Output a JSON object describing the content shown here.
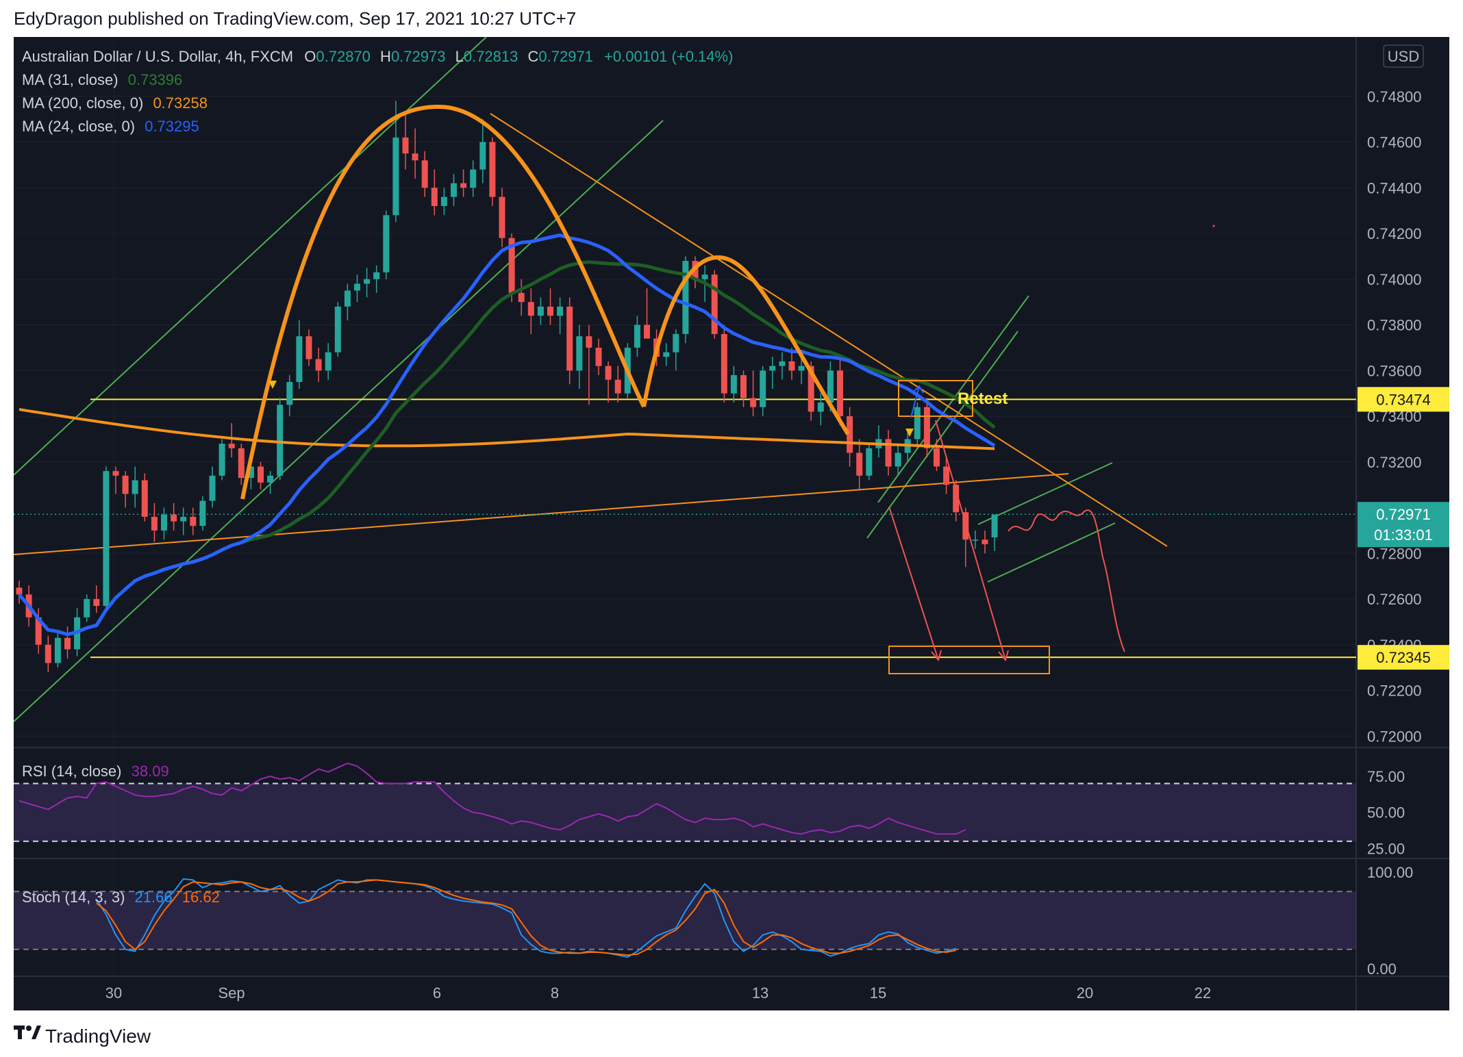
{
  "header": {
    "publisher_line": "EdyDragon published on TradingView.com, Sep 17, 2021 10:27 UTC+7"
  },
  "footer": {
    "brand": "TradingView"
  },
  "colors": {
    "background": "#131722",
    "up": "#26a69a",
    "down": "#ef5350",
    "ma31": "#1e5e24",
    "ma200": "#f7931a",
    "ma24": "#2962ff",
    "rsi": "#9c27b0",
    "stoch_k": "#2196f3",
    "stoch_d": "#ff6d00",
    "horizontal_level": "#ffeb3b"
  },
  "legend": {
    "symbol": "Australian Dollar / U.S. Dollar, 4h, FXCM",
    "o_label": "O",
    "o": "0.72870",
    "h_label": "H",
    "h": "0.72973",
    "l_label": "L",
    "l": "0.72813",
    "c_label": "C",
    "c": "0.72971",
    "change": "+0.00101 (+0.14%)",
    "ma31_label": "MA (31, close)",
    "ma31_value": "0.73396",
    "ma200_label": "MA (200, close, 0)",
    "ma200_value": "0.73258",
    "ma24_label": "MA (24, close, 0)",
    "ma24_value": "0.73295"
  },
  "price_scale": {
    "currency": "USD",
    "ticks": [
      "0.74800",
      "0.74600",
      "0.74400",
      "0.74200",
      "0.74000",
      "0.73800",
      "0.73600",
      "0.73400",
      "0.73200",
      "0.72800",
      "0.72600",
      "0.72400",
      "0.72200",
      "0.72000"
    ],
    "level_high": "0.73474",
    "level_low": "0.72345",
    "last_price": "0.72971",
    "countdown": "01:33:01"
  },
  "annotations": {
    "retest": "Retest"
  },
  "time_axis": [
    "30",
    "Sep",
    "6",
    "8",
    "13",
    "15",
    "20",
    "22"
  ],
  "rsi_panel": {
    "label": "RSI (14, close)",
    "value": "38.09",
    "ticks": [
      "75.00",
      "50.00",
      "25.00"
    ]
  },
  "stoch_panel": {
    "label": "Stoch (14, 3, 3)",
    "k_value": "21.66",
    "d_value": "16.62",
    "ticks": [
      "100.00",
      "0.00"
    ]
  },
  "chart_data": [
    {
      "type": "candlestick",
      "title": "Australian Dollar / U.S. Dollar, 4h, FXCM",
      "ylim": [
        0.7195,
        0.7506
      ],
      "x_ticks": [
        "30",
        "Sep",
        "6",
        "8",
        "13",
        "15",
        "20",
        "22"
      ],
      "candles": [
        [
          0.7265,
          0.7268,
          0.7258,
          0.7262
        ],
        [
          0.7262,
          0.7266,
          0.7248,
          0.7252
        ],
        [
          0.7252,
          0.7256,
          0.7236,
          0.724
        ],
        [
          0.724,
          0.7244,
          0.7228,
          0.7232
        ],
        [
          0.7232,
          0.7245,
          0.723,
          0.7243
        ],
        [
          0.7243,
          0.7248,
          0.7234,
          0.7238
        ],
        [
          0.7238,
          0.7256,
          0.7235,
          0.7252
        ],
        [
          0.7252,
          0.7262,
          0.725,
          0.726
        ],
        [
          0.726,
          0.7266,
          0.7254,
          0.7257
        ],
        [
          0.7257,
          0.7318,
          0.7255,
          0.7316
        ],
        [
          0.7316,
          0.7318,
          0.7306,
          0.7314
        ],
        [
          0.7314,
          0.7316,
          0.73,
          0.7306
        ],
        [
          0.7306,
          0.7318,
          0.73,
          0.7312
        ],
        [
          0.7312,
          0.7315,
          0.7294,
          0.7296
        ],
        [
          0.7296,
          0.7302,
          0.7285,
          0.729
        ],
        [
          0.729,
          0.73,
          0.7286,
          0.7297
        ],
        [
          0.7297,
          0.7302,
          0.729,
          0.7294
        ],
        [
          0.7294,
          0.73,
          0.7288,
          0.7296
        ],
        [
          0.7296,
          0.73,
          0.7288,
          0.7292
        ],
        [
          0.7292,
          0.7305,
          0.729,
          0.7303
        ],
        [
          0.7303,
          0.7318,
          0.73,
          0.7314
        ],
        [
          0.7314,
          0.733,
          0.7312,
          0.7328
        ],
        [
          0.7328,
          0.7337,
          0.7322,
          0.7326
        ],
        [
          0.7326,
          0.7328,
          0.731,
          0.7313
        ],
        [
          0.7313,
          0.7322,
          0.7308,
          0.7318
        ],
        [
          0.7318,
          0.732,
          0.7308,
          0.7311
        ],
        [
          0.7311,
          0.7316,
          0.7306,
          0.7314
        ],
        [
          0.7314,
          0.7348,
          0.7312,
          0.7345
        ],
        [
          0.7345,
          0.7358,
          0.734,
          0.7355
        ],
        [
          0.7355,
          0.7382,
          0.7352,
          0.7375
        ],
        [
          0.7375,
          0.7378,
          0.7362,
          0.7365
        ],
        [
          0.7365,
          0.737,
          0.7355,
          0.736
        ],
        [
          0.736,
          0.7372,
          0.7356,
          0.7368
        ],
        [
          0.7368,
          0.739,
          0.7366,
          0.7388
        ],
        [
          0.7388,
          0.7398,
          0.7382,
          0.7395
        ],
        [
          0.7395,
          0.7402,
          0.739,
          0.7398
        ],
        [
          0.7398,
          0.7405,
          0.7392,
          0.74
        ],
        [
          0.74,
          0.7406,
          0.7394,
          0.7403
        ],
        [
          0.7403,
          0.743,
          0.74,
          0.7428
        ],
        [
          0.7428,
          0.7478,
          0.7425,
          0.7462
        ],
        [
          0.7462,
          0.7472,
          0.7448,
          0.7455
        ],
        [
          0.7455,
          0.7466,
          0.7444,
          0.7452
        ],
        [
          0.7452,
          0.7456,
          0.7436,
          0.744
        ],
        [
          0.744,
          0.7448,
          0.7428,
          0.7432
        ],
        [
          0.7432,
          0.744,
          0.7428,
          0.7436
        ],
        [
          0.7436,
          0.7446,
          0.7432,
          0.7442
        ],
        [
          0.7442,
          0.7448,
          0.7436,
          0.744
        ],
        [
          0.744,
          0.7452,
          0.7436,
          0.7448
        ],
        [
          0.7448,
          0.747,
          0.7442,
          0.746
        ],
        [
          0.746,
          0.7462,
          0.7432,
          0.7436
        ],
        [
          0.7436,
          0.744,
          0.7414,
          0.7418
        ],
        [
          0.7418,
          0.742,
          0.739,
          0.7394
        ],
        [
          0.7394,
          0.74,
          0.7384,
          0.739
        ],
        [
          0.739,
          0.7396,
          0.7376,
          0.7384
        ],
        [
          0.7384,
          0.7392,
          0.738,
          0.7388
        ],
        [
          0.7388,
          0.7396,
          0.738,
          0.7384
        ],
        [
          0.7384,
          0.7392,
          0.7376,
          0.7388
        ],
        [
          0.7388,
          0.7392,
          0.7354,
          0.736
        ],
        [
          0.736,
          0.738,
          0.7352,
          0.7375
        ],
        [
          0.7375,
          0.738,
          0.7345,
          0.737
        ],
        [
          0.737,
          0.7374,
          0.7358,
          0.7362
        ],
        [
          0.7362,
          0.7364,
          0.7346,
          0.7356
        ],
        [
          0.7356,
          0.7362,
          0.7346,
          0.735
        ],
        [
          0.735,
          0.7372,
          0.7348,
          0.737
        ],
        [
          0.737,
          0.7384,
          0.7366,
          0.738
        ],
        [
          0.738,
          0.7396,
          0.7375,
          0.7374
        ],
        [
          0.7374,
          0.7378,
          0.7362,
          0.7366
        ],
        [
          0.7366,
          0.7372,
          0.7362,
          0.7368
        ],
        [
          0.7368,
          0.7378,
          0.736,
          0.7376
        ],
        [
          0.7376,
          0.741,
          0.7372,
          0.7408
        ],
        [
          0.7408,
          0.741,
          0.7396,
          0.74
        ],
        [
          0.74,
          0.7406,
          0.739,
          0.7402
        ],
        [
          0.7402,
          0.7404,
          0.7374,
          0.7376
        ],
        [
          0.7376,
          0.738,
          0.7346,
          0.735
        ],
        [
          0.735,
          0.7362,
          0.7346,
          0.7358
        ],
        [
          0.7358,
          0.736,
          0.7344,
          0.7348
        ],
        [
          0.7348,
          0.736,
          0.734,
          0.7344
        ],
        [
          0.7344,
          0.7362,
          0.734,
          0.736
        ],
        [
          0.736,
          0.7366,
          0.7352,
          0.7362
        ],
        [
          0.7362,
          0.7368,
          0.7356,
          0.7364
        ],
        [
          0.7364,
          0.737,
          0.7356,
          0.736
        ],
        [
          0.736,
          0.7366,
          0.7354,
          0.7362
        ],
        [
          0.7362,
          0.7364,
          0.7338,
          0.7342
        ],
        [
          0.7342,
          0.735,
          0.7336,
          0.7346
        ],
        [
          0.7346,
          0.7364,
          0.7342,
          0.736
        ],
        [
          0.736,
          0.7366,
          0.7336,
          0.734
        ],
        [
          0.734,
          0.7344,
          0.7318,
          0.7324
        ],
        [
          0.7324,
          0.733,
          0.7308,
          0.7314
        ],
        [
          0.7314,
          0.7328,
          0.7312,
          0.7326
        ],
        [
          0.7326,
          0.7336,
          0.7322,
          0.733
        ],
        [
          0.733,
          0.7334,
          0.7314,
          0.7318
        ],
        [
          0.7318,
          0.7328,
          0.7314,
          0.7324
        ],
        [
          0.7324,
          0.7334,
          0.732,
          0.733
        ],
        [
          0.733,
          0.7346,
          0.7326,
          0.7344
        ],
        [
          0.7344,
          0.7348,
          0.7322,
          0.7326
        ],
        [
          0.7326,
          0.733,
          0.7316,
          0.7318
        ],
        [
          0.7318,
          0.7322,
          0.7306,
          0.731
        ],
        [
          0.731,
          0.7312,
          0.7294,
          0.7298
        ],
        [
          0.7298,
          0.73,
          0.7274,
          0.7286
        ],
        [
          0.7286,
          0.729,
          0.7282,
          0.7286
        ],
        [
          0.7286,
          0.729,
          0.728,
          0.7284
        ],
        [
          0.7287,
          0.7297,
          0.7281,
          0.7297
        ]
      ]
    },
    {
      "type": "line",
      "title": "RSI (14, close)",
      "ylim": [
        20,
        92
      ],
      "y_ticks": [
        75,
        50,
        25
      ],
      "band": [
        30,
        70
      ],
      "values": [
        58,
        56,
        54,
        52,
        56,
        60,
        61,
        60,
        70,
        71,
        68,
        65,
        62,
        61,
        61,
        62,
        63,
        66,
        68,
        66,
        63,
        62,
        67,
        65,
        69,
        73,
        75,
        73,
        74,
        72,
        76,
        80,
        78,
        81,
        84,
        82,
        77,
        71,
        70,
        70,
        70,
        71,
        71,
        71,
        64,
        58,
        53,
        50,
        49,
        47,
        45,
        42,
        44,
        43,
        41,
        39,
        38,
        41,
        45,
        47,
        49,
        47,
        44,
        47,
        48,
        52,
        56,
        53,
        49,
        45,
        43,
        46,
        45,
        45,
        46,
        44,
        40,
        42,
        40,
        38,
        36,
        35,
        37,
        38,
        36,
        37,
        40,
        41,
        39,
        42,
        46,
        43,
        41,
        39,
        37,
        35,
        35,
        35,
        38
      ]
    },
    {
      "type": "line",
      "title": "Stoch (14, 3, 3)",
      "ylim": [
        -5,
        110
      ],
      "y_ticks": [
        100,
        0
      ],
      "band": [
        20,
        80
      ],
      "series": [
        {
          "name": "%K",
          "values": [
            72,
            56,
            35,
            20,
            18,
            35,
            55,
            70,
            80,
            93,
            92,
            84,
            88,
            89,
            91,
            90,
            85,
            80,
            82,
            86,
            76,
            68,
            70,
            82,
            87,
            92,
            90,
            89,
            92,
            92,
            91,
            90,
            89,
            88,
            86,
            82,
            75,
            72,
            70,
            69,
            68,
            67,
            63,
            58,
            35,
            25,
            18,
            16,
            16,
            17,
            16,
            18,
            17,
            16,
            14,
            12,
            18,
            26,
            34,
            38,
            42,
            60,
            75,
            88,
            78,
            50,
            28,
            18,
            24,
            35,
            38,
            34,
            28,
            20,
            19,
            18,
            13,
            16,
            21,
            24,
            26,
            35,
            38,
            36,
            27,
            22,
            19,
            16,
            18,
            21
          ]
        },
        {
          "name": "%D",
          "values": [
            68,
            60,
            45,
            28,
            20,
            28,
            45,
            60,
            72,
            85,
            90,
            89,
            88,
            87,
            89,
            90,
            88,
            84,
            82,
            83,
            80,
            74,
            70,
            74,
            80,
            88,
            90,
            90,
            91,
            92,
            91,
            90,
            89,
            88,
            87,
            84,
            80,
            76,
            73,
            71,
            69,
            68,
            66,
            62,
            48,
            34,
            24,
            19,
            17,
            16,
            16,
            17,
            17,
            16,
            15,
            14,
            15,
            20,
            28,
            35,
            40,
            50,
            62,
            78,
            82,
            68,
            45,
            28,
            22,
            28,
            35,
            35,
            32,
            26,
            22,
            19,
            16,
            16,
            18,
            21,
            24,
            30,
            34,
            35,
            30,
            25,
            21,
            18,
            17,
            19
          ]
        }
      ]
    }
  ]
}
